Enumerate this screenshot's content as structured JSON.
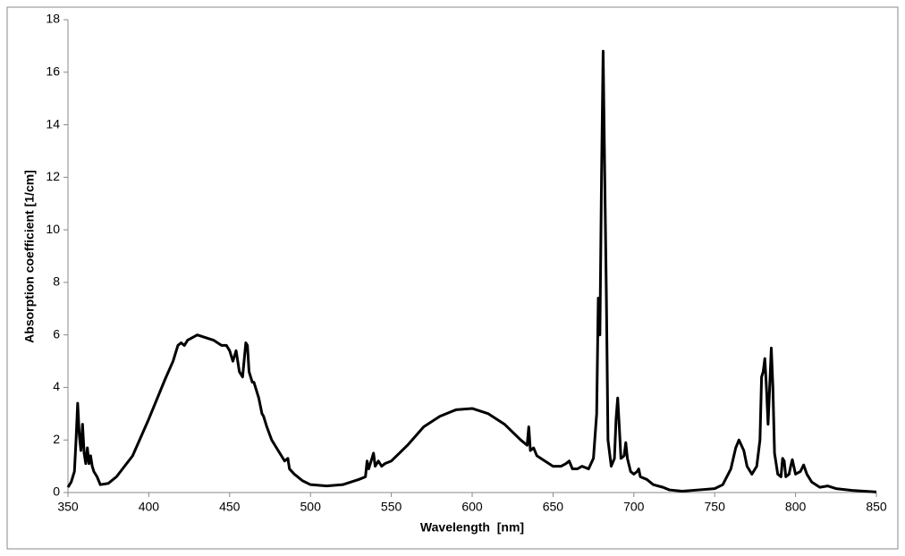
{
  "chart_data": {
    "type": "line",
    "xlabel": "Wavelength  [nm]",
    "ylabel": "Absorption coefficient [1/cm]",
    "xlim": [
      350,
      850
    ],
    "xticks": [
      350,
      400,
      450,
      500,
      550,
      600,
      650,
      700,
      750,
      800,
      850
    ],
    "ylim": [
      0,
      18
    ],
    "yticks": [
      0,
      2,
      4,
      6,
      8,
      10,
      12,
      14,
      16,
      18
    ],
    "grid": false,
    "series": [
      {
        "color": "#000000",
        "x": [
          350,
          352,
          354,
          355,
          356,
          357,
          358,
          359,
          360,
          361,
          362,
          363,
          364,
          365,
          366,
          368,
          370,
          375,
          380,
          390,
          400,
          410,
          415,
          418,
          420,
          422,
          424,
          430,
          440,
          445,
          448,
          450,
          452,
          454,
          456,
          458,
          460,
          461,
          462,
          464,
          465,
          468,
          470,
          471,
          473,
          476,
          480,
          484,
          486,
          487,
          490,
          495,
          500,
          510,
          520,
          530,
          534,
          535,
          536,
          538,
          539,
          540,
          542,
          544,
          546,
          550,
          560,
          570,
          580,
          590,
          600,
          610,
          620,
          630,
          634,
          635,
          636,
          638,
          640,
          645,
          650,
          655,
          658,
          660,
          662,
          665,
          668,
          672,
          675,
          677,
          678,
          679,
          680,
          681,
          682,
          683,
          684,
          686,
          688,
          689,
          690,
          691,
          692,
          694,
          695,
          696,
          698,
          700,
          702,
          703,
          704,
          708,
          712,
          718,
          722,
          730,
          740,
          750,
          755,
          760,
          763,
          765,
          768,
          770,
          773,
          776,
          778,
          779,
          780,
          781,
          782,
          783,
          784,
          785,
          786,
          787,
          789,
          791,
          792,
          793,
          794,
          796,
          797,
          798,
          800,
          803,
          805,
          807,
          810,
          815,
          820,
          825,
          835,
          850
        ],
        "values": [
          0.2,
          0.4,
          0.8,
          2.0,
          3.4,
          2.2,
          1.6,
          2.6,
          1.5,
          1.1,
          1.7,
          1.1,
          1.4,
          1.0,
          0.8,
          0.6,
          0.3,
          0.35,
          0.6,
          1.4,
          2.8,
          4.3,
          5.0,
          5.6,
          5.7,
          5.6,
          5.8,
          6.0,
          5.8,
          5.6,
          5.6,
          5.4,
          5.0,
          5.4,
          4.6,
          4.4,
          5.7,
          5.6,
          4.6,
          4.2,
          4.2,
          3.6,
          3.0,
          2.9,
          2.5,
          2.0,
          1.6,
          1.2,
          1.3,
          0.9,
          0.7,
          0.45,
          0.3,
          0.25,
          0.3,
          0.5,
          0.6,
          1.2,
          0.9,
          1.3,
          1.5,
          1.0,
          1.2,
          1.0,
          1.1,
          1.2,
          1.8,
          2.5,
          2.9,
          3.15,
          3.2,
          3.0,
          2.6,
          2.0,
          1.8,
          2.5,
          1.6,
          1.7,
          1.4,
          1.2,
          1.0,
          1.0,
          1.1,
          1.2,
          0.9,
          0.9,
          1.0,
          0.9,
          1.3,
          3.0,
          7.4,
          6.0,
          12,
          16.8,
          12,
          7.5,
          2,
          1.0,
          1.3,
          2.8,
          3.6,
          2.5,
          1.3,
          1.4,
          1.9,
          1.3,
          0.8,
          0.7,
          0.8,
          0.9,
          0.6,
          0.5,
          0.3,
          0.2,
          0.1,
          0.05,
          0.1,
          0.15,
          0.3,
          0.9,
          1.7,
          2.0,
          1.6,
          1.0,
          0.7,
          1.0,
          2.0,
          4.4,
          4.6,
          5.1,
          4.0,
          2.6,
          4.0,
          5.5,
          4.0,
          1.5,
          0.7,
          0.6,
          1.3,
          1.2,
          0.6,
          0.7,
          1.0,
          1.25,
          0.7,
          0.8,
          1.05,
          0.7,
          0.4,
          0.2,
          0.25,
          0.15,
          0.08,
          0.02
        ]
      }
    ]
  }
}
